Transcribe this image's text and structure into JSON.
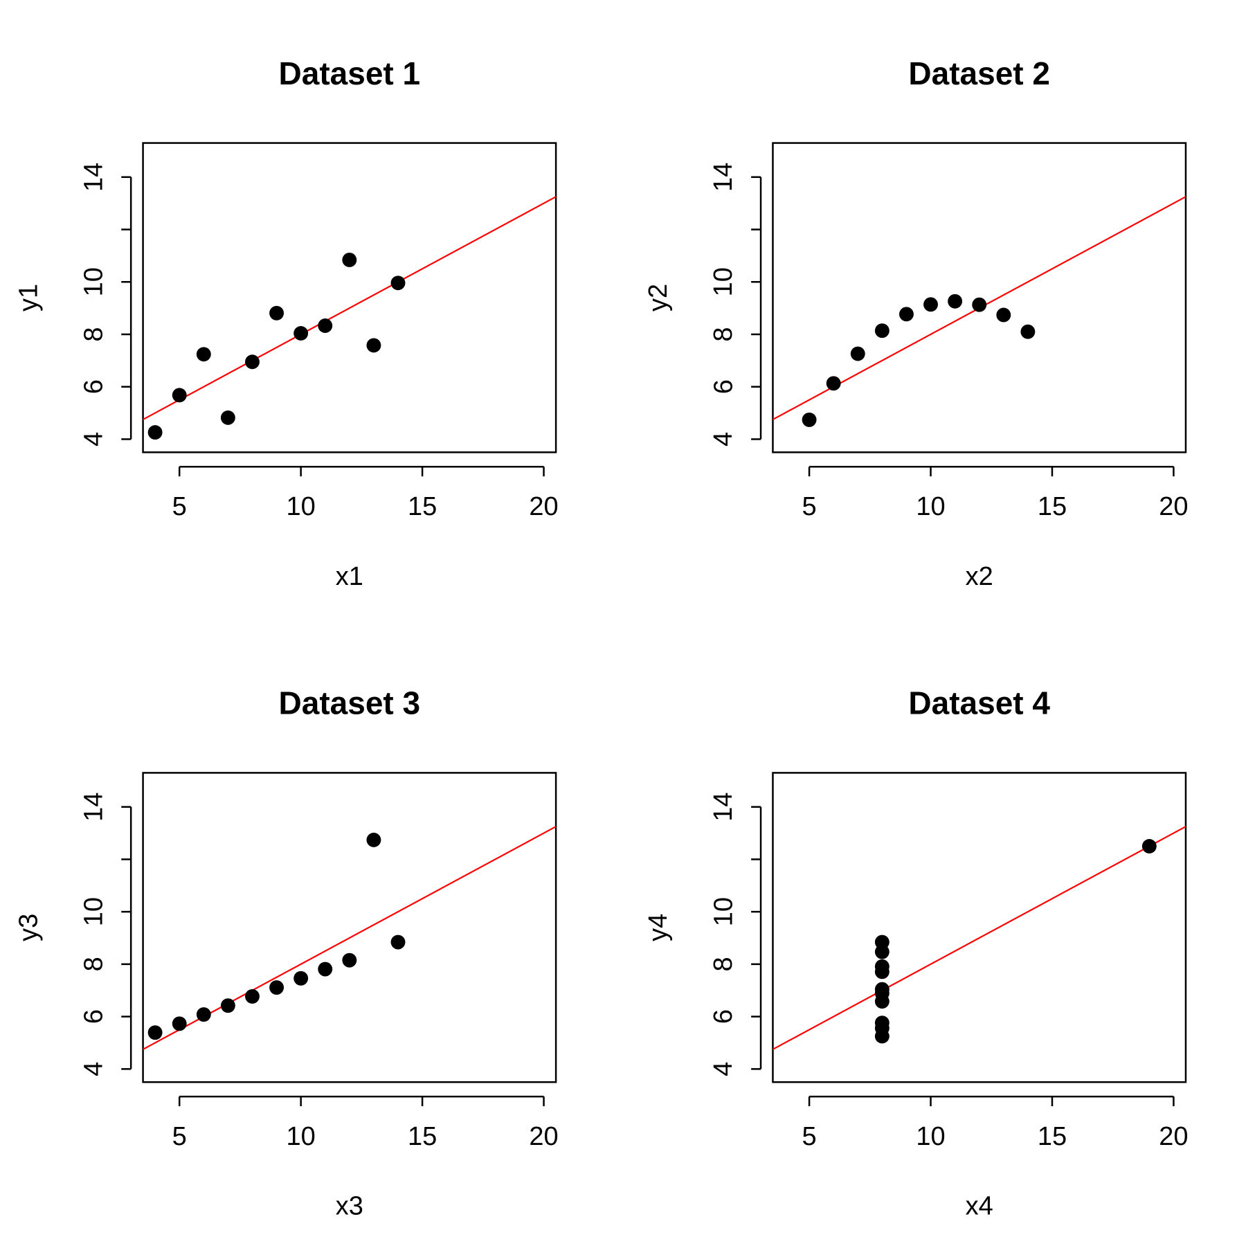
{
  "colors": {
    "points": "#000000",
    "fit_line": "#ff0000",
    "background": "#ffffff"
  },
  "chart_data": [
    {
      "type": "scatter",
      "title": "Dataset 1",
      "xlabel": "x1",
      "ylabel": "y1",
      "xlim": [
        3.5,
        20.5
      ],
      "ylim": [
        3.5,
        15.3
      ],
      "xticks": [
        5,
        10,
        15,
        20
      ],
      "yticks": [
        4,
        6,
        8,
        10,
        12,
        14
      ],
      "ytick_labels": [
        "4",
        "6",
        "8",
        "10",
        "",
        "14"
      ],
      "grid": false,
      "points": [
        [
          4,
          4.26
        ],
        [
          5,
          5.68
        ],
        [
          6,
          7.24
        ],
        [
          7,
          4.82
        ],
        [
          8,
          6.95
        ],
        [
          9,
          8.81
        ],
        [
          10,
          8.04
        ],
        [
          11,
          8.33
        ],
        [
          12,
          10.84
        ],
        [
          13,
          7.58
        ],
        [
          14,
          9.96
        ]
      ],
      "fit_line": {
        "intercept": 3.0,
        "slope": 0.5
      }
    },
    {
      "type": "scatter",
      "title": "Dataset 2",
      "xlabel": "x2",
      "ylabel": "y2",
      "xlim": [
        3.5,
        20.5
      ],
      "ylim": [
        3.5,
        15.3
      ],
      "xticks": [
        5,
        10,
        15,
        20
      ],
      "yticks": [
        4,
        6,
        8,
        10,
        12,
        14
      ],
      "ytick_labels": [
        "4",
        "6",
        "8",
        "10",
        "",
        "14"
      ],
      "grid": false,
      "points": [
        [
          5,
          4.74
        ],
        [
          6,
          6.13
        ],
        [
          7,
          7.26
        ],
        [
          8,
          8.14
        ],
        [
          9,
          8.77
        ],
        [
          10,
          9.14
        ],
        [
          11,
          9.26
        ],
        [
          12,
          9.13
        ],
        [
          13,
          8.74
        ],
        [
          14,
          8.1
        ]
      ],
      "fit_line": {
        "intercept": 3.0,
        "slope": 0.5
      }
    },
    {
      "type": "scatter",
      "title": "Dataset 3",
      "xlabel": "x3",
      "ylabel": "y3",
      "xlim": [
        3.5,
        20.5
      ],
      "ylim": [
        3.5,
        15.3
      ],
      "xticks": [
        5,
        10,
        15,
        20
      ],
      "yticks": [
        4,
        6,
        8,
        10,
        12,
        14
      ],
      "ytick_labels": [
        "4",
        "6",
        "8",
        "10",
        "",
        "14"
      ],
      "grid": false,
      "points": [
        [
          4,
          5.39
        ],
        [
          5,
          5.73
        ],
        [
          6,
          6.08
        ],
        [
          7,
          6.42
        ],
        [
          8,
          6.77
        ],
        [
          9,
          7.11
        ],
        [
          10,
          7.46
        ],
        [
          11,
          7.81
        ],
        [
          12,
          8.15
        ],
        [
          13,
          12.74
        ],
        [
          14,
          8.84
        ]
      ],
      "fit_line": {
        "intercept": 3.0,
        "slope": 0.5
      }
    },
    {
      "type": "scatter",
      "title": "Dataset 4",
      "xlabel": "x4",
      "ylabel": "y4",
      "xlim": [
        3.5,
        20.5
      ],
      "ylim": [
        3.5,
        15.3
      ],
      "xticks": [
        5,
        10,
        15,
        20
      ],
      "yticks": [
        4,
        6,
        8,
        10,
        12,
        14
      ],
      "ytick_labels": [
        "4",
        "6",
        "8",
        "10",
        "",
        "14"
      ],
      "grid": false,
      "points": [
        [
          8,
          6.58
        ],
        [
          8,
          5.76
        ],
        [
          8,
          7.71
        ],
        [
          8,
          8.84
        ],
        [
          8,
          8.47
        ],
        [
          8,
          7.04
        ],
        [
          8,
          5.25
        ],
        [
          19,
          12.5
        ],
        [
          8,
          5.56
        ],
        [
          8,
          7.91
        ],
        [
          8,
          6.89
        ]
      ],
      "fit_line": {
        "intercept": 3.0,
        "slope": 0.5
      }
    }
  ]
}
